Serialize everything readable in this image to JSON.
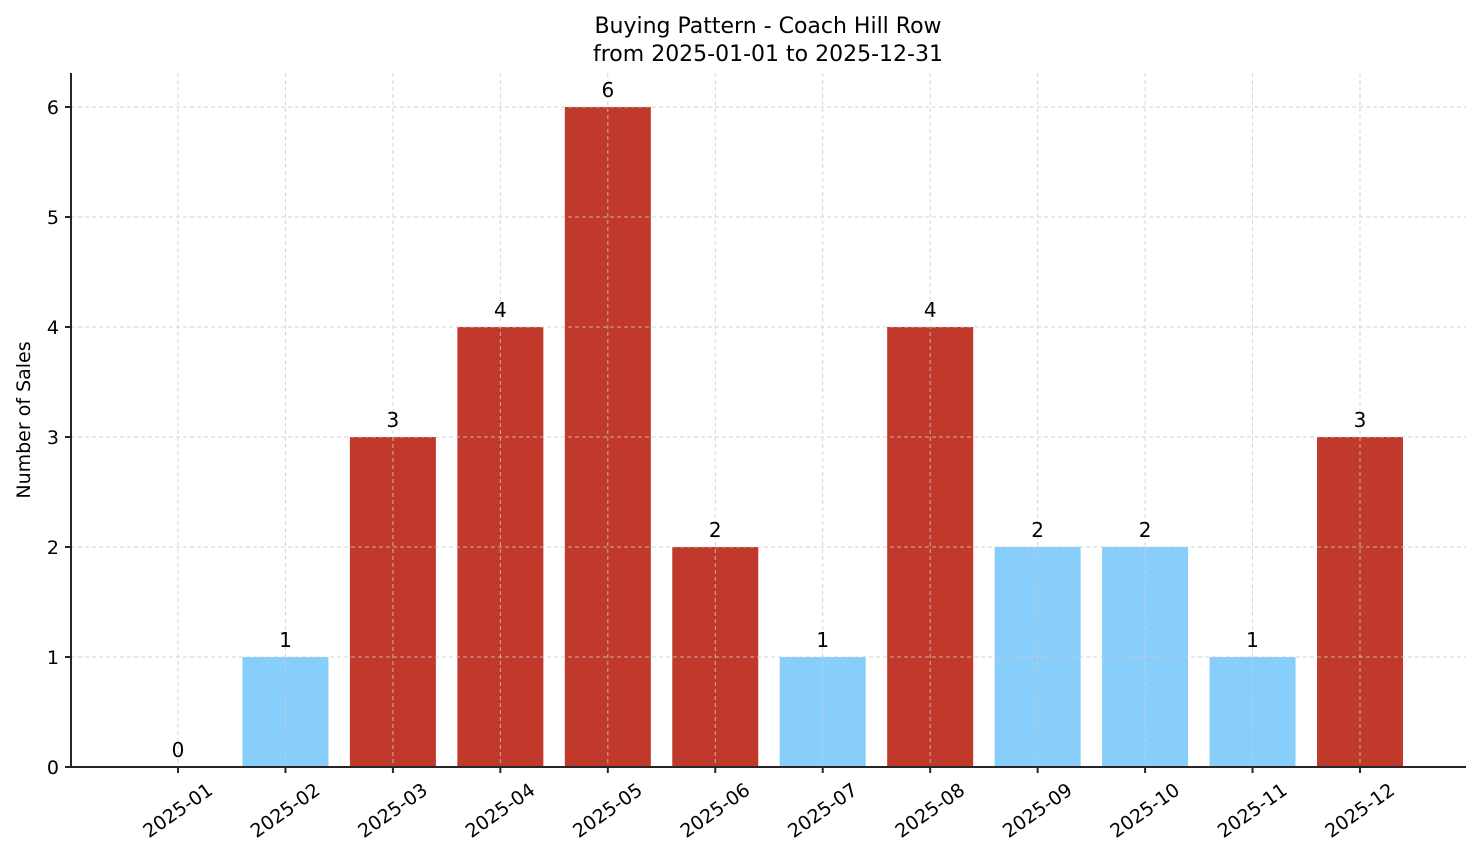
{
  "chart_data": {
    "type": "bar",
    "title": "Buying Pattern - Coach Hill Row",
    "subtitle": "from 2025-01-01 to 2025-12-31",
    "xlabel": "",
    "ylabel": "Number of Sales",
    "categories": [
      "2025-01",
      "2025-02",
      "2025-03",
      "2025-04",
      "2025-05",
      "2025-06",
      "2025-07",
      "2025-08",
      "2025-09",
      "2025-10",
      "2025-11",
      "2025-12"
    ],
    "values": [
      0,
      1,
      3,
      4,
      6,
      2,
      1,
      4,
      2,
      2,
      1,
      3
    ],
    "bar_colors": [
      "#87cefa",
      "#87cefa",
      "#c0392b",
      "#c0392b",
      "#c0392b",
      "#c0392b",
      "#87cefa",
      "#c0392b",
      "#87cefa",
      "#87cefa",
      "#87cefa",
      "#c0392b"
    ],
    "colors": {
      "high": "#c0392b",
      "low": "#87cefa"
    },
    "yticks": [
      0,
      1,
      2,
      3,
      4,
      5,
      6
    ],
    "ylim": [
      0,
      6.3
    ],
    "grid": true,
    "legend": null,
    "data_labels": true
  }
}
